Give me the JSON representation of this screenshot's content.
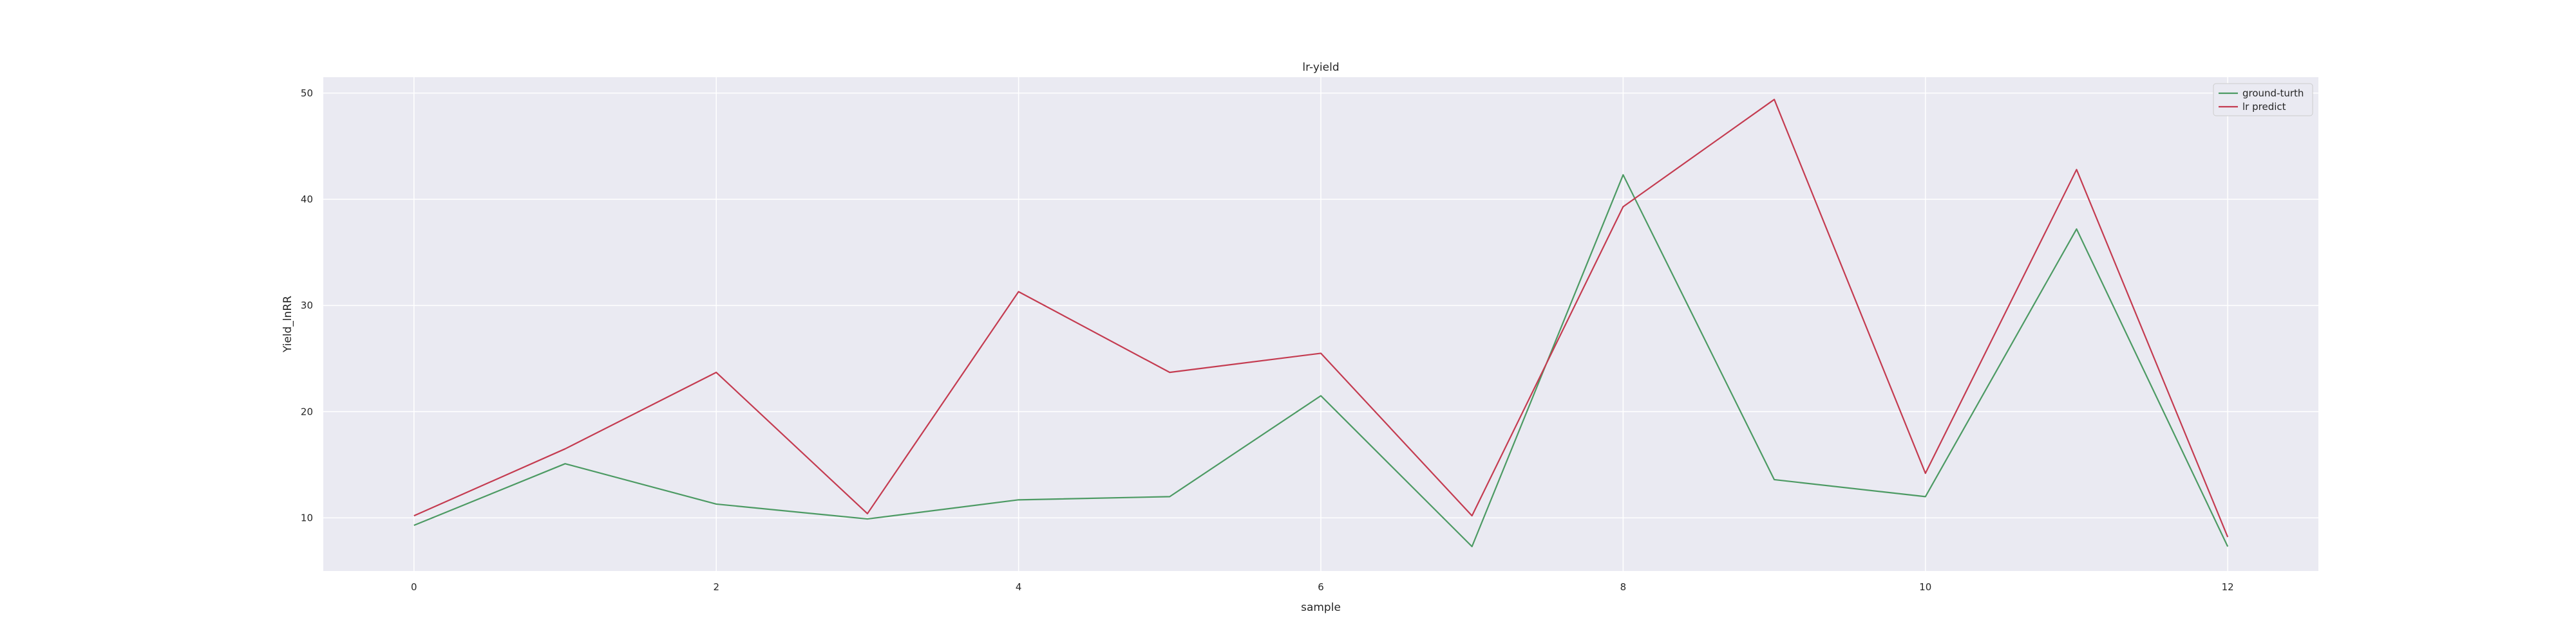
{
  "chart_data": {
    "type": "line",
    "title": "lr-yield",
    "xlabel": "sample",
    "ylabel": "Yield_lnRR",
    "x": [
      0,
      1,
      2,
      3,
      4,
      5,
      6,
      7,
      8,
      9,
      10,
      11,
      12
    ],
    "xticks": [
      0,
      2,
      4,
      6,
      8,
      10,
      12
    ],
    "yticks": [
      10,
      20,
      30,
      40,
      50
    ],
    "xlim": [
      -0.6,
      12.6
    ],
    "ylim": [
      5,
      51.5
    ],
    "grid": true,
    "legend_position": "top-right",
    "series": [
      {
        "name": "ground-turth",
        "color": "#4c9a63",
        "values": [
          9.3,
          15.1,
          11.3,
          9.9,
          11.7,
          12.0,
          21.5,
          7.3,
          42.3,
          13.6,
          12.0,
          37.2,
          7.3
        ]
      },
      {
        "name": "lr predict",
        "color": "#c43b50",
        "values": [
          10.2,
          16.5,
          23.7,
          10.4,
          31.3,
          23.7,
          25.5,
          10.2,
          39.3,
          49.4,
          14.2,
          42.8,
          8.2
        ]
      }
    ],
    "plot_background": "#eaeaf2"
  }
}
